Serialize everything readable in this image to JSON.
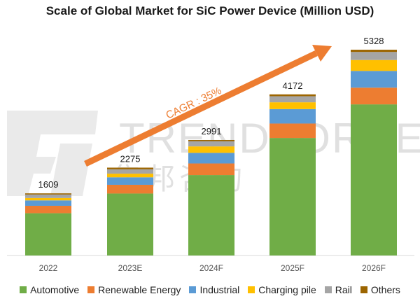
{
  "chart_data": {
    "type": "bar",
    "stacked": true,
    "title": "Scale of Global Market for SiC Power Device (Million USD)",
    "categories": [
      "2022",
      "2023E",
      "2024F",
      "2025F",
      "2026F"
    ],
    "totals": [
      1609,
      2275,
      2991,
      4172,
      5328
    ],
    "series": [
      {
        "name": "Automotive",
        "color": "#70ad47",
        "values": [
          1095,
          1605,
          2083,
          3043,
          3913
        ]
      },
      {
        "name": "Renewable Energy",
        "color": "#ed7d31",
        "values": [
          192,
          226,
          300,
          374,
          433
        ]
      },
      {
        "name": "Industrial",
        "color": "#5b9bd5",
        "values": [
          140,
          194,
          275,
          374,
          433
        ]
      },
      {
        "name": "Charging pile",
        "color": "#ffc000",
        "values": [
          62,
          94,
          167,
          176,
          283
        ]
      },
      {
        "name": "Rail",
        "color": "#a5a5a5",
        "values": [
          90,
          113,
          133,
          157,
          208
        ]
      },
      {
        "name": "Others",
        "color": "#9c6500",
        "values": [
          30,
          43,
          33,
          48,
          58
        ]
      }
    ],
    "ylim": [
      0,
      5800
    ],
    "grid": false,
    "legend_position": "bottom",
    "annotation": {
      "text": "CAGR : 35%",
      "color": "#ed7d31"
    },
    "watermark": {
      "text": "TRENDFORCE",
      "text_cn": "集邦咨询"
    }
  }
}
